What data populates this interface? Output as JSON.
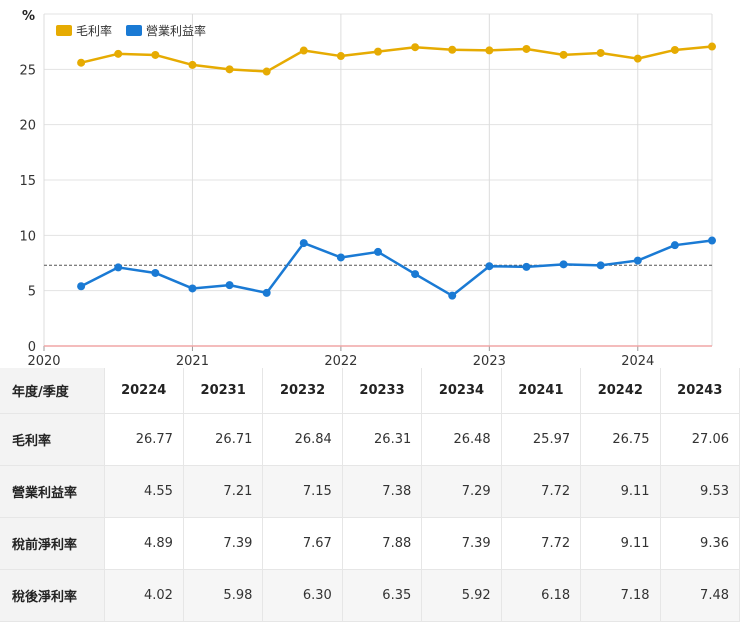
{
  "chart_data": {
    "type": "line",
    "unit_label": "%",
    "x_ticks": [
      "2020",
      "2021",
      "2022",
      "2023",
      "2024"
    ],
    "y_ticks": [
      "0",
      "5",
      "10",
      "15",
      "20",
      "25"
    ],
    "ylim": [
      0,
      30
    ],
    "xlim": [
      2020,
      2024.5
    ],
    "reference_line_y": 7.3,
    "x": [
      2020.25,
      2020.5,
      2020.75,
      2021.0,
      2021.25,
      2021.5,
      2021.75,
      2022.0,
      2022.25,
      2022.5,
      2022.75,
      2023.0,
      2023.25,
      2023.5,
      2023.75,
      2024.0,
      2024.25,
      2024.5
    ],
    "series": [
      {
        "name": "毛利率",
        "color": "#e6ab02",
        "values": [
          25.6,
          26.4,
          26.3,
          25.4,
          25.0,
          24.8,
          26.7,
          26.2,
          26.6,
          27.0,
          26.77,
          26.71,
          26.84,
          26.31,
          26.48,
          25.97,
          26.75,
          27.06
        ]
      },
      {
        "name": "營業利益率",
        "color": "#1a7ad4",
        "values": [
          5.4,
          7.1,
          6.6,
          5.2,
          5.5,
          4.8,
          9.3,
          8.0,
          8.5,
          6.5,
          4.55,
          7.21,
          7.15,
          7.38,
          7.29,
          7.72,
          9.11,
          9.53
        ]
      }
    ]
  },
  "table": {
    "header_label": "年度/季度",
    "columns": [
      "20224",
      "20231",
      "20232",
      "20233",
      "20234",
      "20241",
      "20242",
      "20243"
    ],
    "rows": [
      {
        "label": "毛利率",
        "values": [
          "26.77",
          "26.71",
          "26.84",
          "26.31",
          "26.48",
          "25.97",
          "26.75",
          "27.06"
        ]
      },
      {
        "label": "營業利益率",
        "values": [
          "4.55",
          "7.21",
          "7.15",
          "7.38",
          "7.29",
          "7.72",
          "9.11",
          "9.53"
        ]
      },
      {
        "label": "稅前淨利率",
        "values": [
          "4.89",
          "7.39",
          "7.67",
          "7.88",
          "7.39",
          "7.72",
          "9.11",
          "9.36"
        ]
      },
      {
        "label": "稅後淨利率",
        "values": [
          "4.02",
          "5.98",
          "6.30",
          "6.35",
          "5.92",
          "6.18",
          "7.18",
          "7.48"
        ]
      }
    ]
  }
}
